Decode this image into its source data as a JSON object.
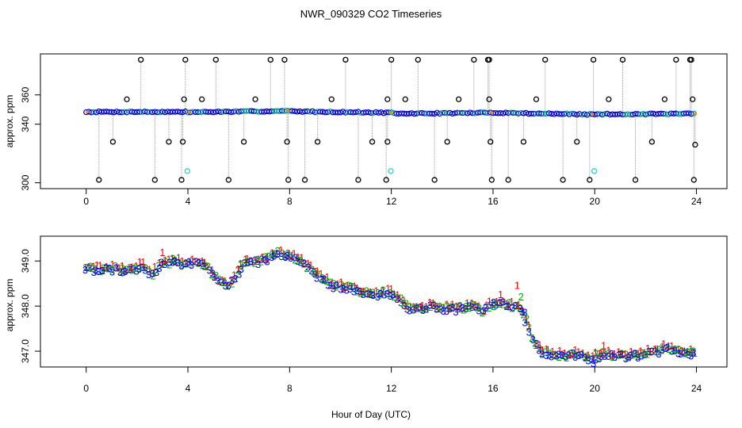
{
  "figure": {
    "title": "NWR_090329  CO2 Timeseries"
  },
  "colors": {
    "axis": "#000000",
    "main": "#0000cc",
    "alt": "#009999",
    "spike": "#000000",
    "cal": "#33cccc",
    "stem": "#999999",
    "orange": "#ff8800",
    "d1": "#ff0000",
    "d2": "#00aa00",
    "d3": "#0000ff"
  },
  "chart_data": [
    {
      "name": "top",
      "type": "scatter",
      "title": "",
      "xlabel": "",
      "ylabel": "approx. ppm",
      "xlim": [
        -1.8,
        25.2
      ],
      "ylim": [
        296,
        388
      ],
      "xticks": [
        0,
        4,
        8,
        12,
        16,
        20,
        24
      ],
      "yticks": [
        300,
        340,
        360
      ],
      "ytick_labels": [
        "300",
        "340",
        "360"
      ],
      "baseline": {
        "segments": [
          {
            "x": [
              0.0,
              3.95
            ],
            "y": [
              348.4,
              348.4
            ]
          },
          {
            "x": [
              4.0,
              7.95
            ],
            "y": [
              348.2,
              349.0
            ]
          },
          {
            "x": [
              8.0,
              11.95
            ],
            "y": [
              348.8,
              347.8
            ]
          },
          {
            "x": [
              12.0,
              15.95
            ],
            "y": [
              347.2,
              347.8
            ]
          },
          {
            "x": [
              16.0,
              19.95
            ],
            "y": [
              347.9,
              346.6
            ]
          },
          {
            "x": [
              20.0,
              23.9
            ],
            "y": [
              346.8,
              347.1
            ]
          }
        ]
      },
      "high_spikes": [
        2.15,
        3.9,
        5.1,
        7.25,
        7.8,
        10.2,
        12.0,
        13.05,
        15.25,
        15.8,
        15.85,
        18.05,
        19.95,
        21.1,
        23.2,
        23.75,
        23.8
      ],
      "mid_spikes": [
        1.6,
        3.85,
        4.55,
        6.65,
        9.65,
        11.85,
        12.55,
        14.65,
        15.85,
        17.7,
        20.55,
        22.75,
        23.85
      ],
      "low_points": [
        {
          "x": 1.05,
          "y": 328
        },
        {
          "x": 3.25,
          "y": 328
        },
        {
          "x": 3.8,
          "y": 328
        },
        {
          "x": 6.2,
          "y": 328
        },
        {
          "x": 7.9,
          "y": 328
        },
        {
          "x": 9.1,
          "y": 328
        },
        {
          "x": 11.25,
          "y": 328
        },
        {
          "x": 11.85,
          "y": 328
        },
        {
          "x": 14.2,
          "y": 328
        },
        {
          "x": 15.9,
          "y": 328
        },
        {
          "x": 17.2,
          "y": 328
        },
        {
          "x": 19.3,
          "y": 328
        },
        {
          "x": 22.25,
          "y": 328
        },
        {
          "x": 23.95,
          "y": 326
        },
        {
          "x": 0.5,
          "y": 302
        },
        {
          "x": 2.7,
          "y": 302
        },
        {
          "x": 3.75,
          "y": 302
        },
        {
          "x": 5.6,
          "y": 302
        },
        {
          "x": 7.95,
          "y": 302
        },
        {
          "x": 8.6,
          "y": 302
        },
        {
          "x": 10.7,
          "y": 302
        },
        {
          "x": 11.8,
          "y": 302
        },
        {
          "x": 13.7,
          "y": 302
        },
        {
          "x": 15.95,
          "y": 302
        },
        {
          "x": 16.6,
          "y": 302
        },
        {
          "x": 18.75,
          "y": 302
        },
        {
          "x": 19.8,
          "y": 302
        },
        {
          "x": 21.6,
          "y": 302
        },
        {
          "x": 23.9,
          "y": 302
        }
      ],
      "cal_points": [
        {
          "x": 3.98,
          "y": 308
        },
        {
          "x": 11.98,
          "y": 308
        },
        {
          "x": 19.98,
          "y": 308
        }
      ],
      "orange_points": [
        0.05,
        4.05,
        7.95,
        12.0,
        15.95,
        19.9,
        23.95
      ]
    },
    {
      "name": "bottom",
      "type": "scatter",
      "xlabel": "Hour of Day (UTC)",
      "ylabel": "approx. ppm",
      "xlim": [
        -1.8,
        25.2
      ],
      "ylim": [
        346.65,
        349.55
      ],
      "xticks": [
        0,
        4,
        8,
        12,
        16,
        20,
        24
      ],
      "yticks": [
        347,
        348,
        349
      ],
      "ytick_labels": [
        "347.0",
        "348.0",
        "349.0"
      ],
      "series_symbols": [
        "1",
        "2",
        "3"
      ],
      "anchors": [
        [
          0.0,
          348.85
        ],
        [
          0.6,
          348.8
        ],
        [
          1.0,
          348.85
        ],
        [
          1.6,
          348.8
        ],
        [
          2.2,
          348.9
        ],
        [
          2.6,
          348.7
        ],
        [
          3.0,
          348.95
        ],
        [
          3.5,
          349.0
        ],
        [
          3.9,
          348.95
        ],
        [
          4.3,
          349.0
        ],
        [
          4.8,
          348.85
        ],
        [
          5.2,
          348.55
        ],
        [
          5.6,
          348.45
        ],
        [
          5.9,
          348.7
        ],
        [
          6.2,
          348.95
        ],
        [
          6.7,
          349.0
        ],
        [
          7.1,
          349.05
        ],
        [
          7.5,
          349.2
        ],
        [
          8.0,
          349.1
        ],
        [
          8.3,
          349.05
        ],
        [
          8.8,
          348.85
        ],
        [
          9.3,
          348.6
        ],
        [
          9.8,
          348.45
        ],
        [
          10.4,
          348.4
        ],
        [
          10.8,
          348.3
        ],
        [
          11.3,
          348.25
        ],
        [
          11.7,
          348.3
        ],
        [
          12.0,
          348.3
        ],
        [
          12.3,
          348.15
        ],
        [
          12.7,
          347.95
        ],
        [
          13.1,
          347.95
        ],
        [
          13.5,
          348.0
        ],
        [
          14.1,
          347.95
        ],
        [
          14.6,
          347.95
        ],
        [
          15.2,
          348.0
        ],
        [
          15.6,
          347.9
        ],
        [
          15.95,
          348.05
        ],
        [
          16.3,
          348.1
        ],
        [
          16.7,
          348.0
        ],
        [
          17.0,
          348.05
        ],
        [
          17.3,
          347.7
        ],
        [
          17.6,
          347.2
        ],
        [
          17.9,
          347.0
        ],
        [
          18.3,
          346.95
        ],
        [
          18.8,
          346.9
        ],
        [
          19.3,
          346.95
        ],
        [
          19.8,
          346.85
        ],
        [
          20.3,
          346.95
        ],
        [
          20.8,
          346.9
        ],
        [
          21.4,
          346.9
        ],
        [
          21.9,
          346.95
        ],
        [
          22.4,
          347.0
        ],
        [
          22.9,
          347.1
        ],
        [
          23.3,
          347.0
        ],
        [
          23.9,
          346.95
        ]
      ],
      "outliers": [
        {
          "x": 3.0,
          "y": 349.18,
          "s": "1"
        },
        {
          "x": 16.95,
          "y": 348.45,
          "s": "1"
        },
        {
          "x": 16.3,
          "y": 348.25,
          "s": "1"
        },
        {
          "x": 20.35,
          "y": 347.12,
          "s": "1"
        },
        {
          "x": 19.95,
          "y": 346.72,
          "s": "3"
        },
        {
          "x": 17.1,
          "y": 348.2,
          "s": "2"
        },
        {
          "x": 17.25,
          "y": 347.85,
          "s": "3"
        }
      ]
    }
  ]
}
